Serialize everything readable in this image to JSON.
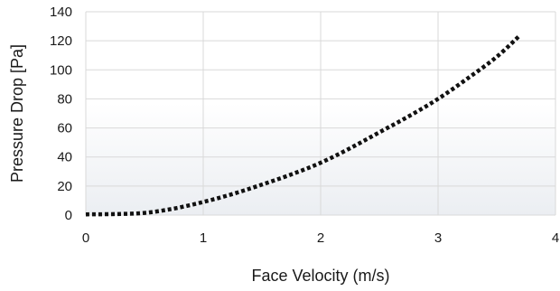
{
  "chart_data": {
    "type": "line",
    "xlabel": "Face Velocity (m/s)",
    "ylabel": "Pressure Drop [Pa]",
    "xlim": [
      0,
      4
    ],
    "ylim": [
      0,
      140
    ],
    "x_ticks": [
      0,
      1,
      2,
      3,
      4
    ],
    "y_ticks": [
      0,
      20,
      40,
      60,
      80,
      100,
      120,
      140
    ],
    "grid": true,
    "legend": "none",
    "background_shading": "light gray gradient in the lower plot region",
    "series": [
      {
        "style": "dotted",
        "color": "#111111",
        "x": [
          0,
          0.25,
          0.5,
          0.75,
          1.0,
          1.25,
          1.5,
          1.75,
          2.0,
          2.25,
          2.5,
          2.75,
          3.0,
          3.25,
          3.5,
          3.7
        ],
        "y": [
          0.5,
          0.7,
          1.5,
          4.5,
          9,
          14.5,
          21,
          28,
          36,
          46,
          57,
          68,
          80,
          94,
          109,
          124
        ]
      }
    ]
  }
}
